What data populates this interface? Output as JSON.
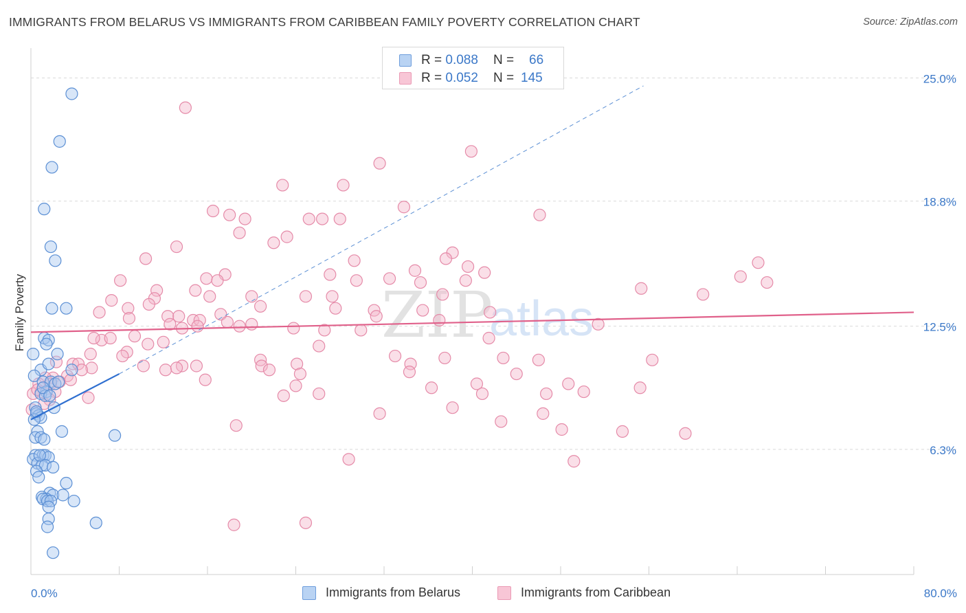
{
  "title": "IMMIGRANTS FROM BELARUS VS IMMIGRANTS FROM CARIBBEAN FAMILY POVERTY CORRELATION CHART",
  "source": "Source: ZipAtlas.com",
  "watermark": {
    "zip": "ZIP",
    "atlas": "atlas"
  },
  "legend": {
    "series1": {
      "r_label": "R =",
      "r_value": "0.088",
      "n_label": "N =",
      "n_value": "66"
    },
    "series2": {
      "r_label": "R =",
      "r_value": "0.052",
      "n_label": "N =",
      "n_value": "145"
    }
  },
  "colors": {
    "blue_fill": "#a9c8f0",
    "blue_stroke": "#5b8fd4",
    "blue_line": "#2f6fd0",
    "pink_fill": "#f5b8cb",
    "pink_stroke": "#e58aa8",
    "pink_line": "#e0608a",
    "tick_label": "#3b78c8"
  },
  "chart_data": {
    "type": "scatter",
    "title": "IMMIGRANTS FROM BELARUS VS IMMIGRANTS FROM CARIBBEAN FAMILY POVERTY CORRELATION CHART",
    "xlabel": "",
    "ylabel": "Family Poverty",
    "xlim": [
      0,
      80
    ],
    "ylim": [
      0,
      26.5
    ],
    "x_tick_labels": [
      "0.0%",
      "80.0%"
    ],
    "y_ticks": [
      6.3,
      12.5,
      18.8,
      25.0
    ],
    "y_tick_labels": [
      "6.3%",
      "12.5%",
      "18.8%",
      "25.0%"
    ],
    "grid": true,
    "legend_position": "top-center",
    "series": [
      {
        "name": "Immigrants from Belarus",
        "R": 0.088,
        "N": 66,
        "trend": {
          "x": [
            0,
            8
          ],
          "y": [
            7.8,
            10.1
          ]
        },
        "trend_extension": {
          "x": [
            8,
            55.5
          ],
          "y": [
            10.1,
            24.6
          ]
        },
        "points": [
          [
            3.7,
            24.2
          ],
          [
            2.6,
            21.8
          ],
          [
            1.9,
            20.5
          ],
          [
            1.2,
            18.4
          ],
          [
            1.8,
            16.5
          ],
          [
            2.2,
            15.8
          ],
          [
            3.2,
            13.4
          ],
          [
            1.9,
            13.4
          ],
          [
            1.2,
            11.9
          ],
          [
            1.6,
            11.8
          ],
          [
            1.4,
            11.6
          ],
          [
            2.4,
            11.1
          ],
          [
            0.2,
            11.1
          ],
          [
            0.9,
            10.3
          ],
          [
            1.6,
            10.6
          ],
          [
            3.7,
            10.3
          ],
          [
            0.3,
            10.0
          ],
          [
            1.1,
            9.7
          ],
          [
            1.8,
            9.7
          ],
          [
            2.2,
            9.6
          ],
          [
            1.4,
            9.2
          ],
          [
            0.9,
            9.1
          ],
          [
            1.3,
            9.0
          ],
          [
            0.4,
            8.4
          ],
          [
            2.1,
            8.4
          ],
          [
            0.5,
            8.1
          ],
          [
            0.7,
            8.0
          ],
          [
            0.9,
            7.9
          ],
          [
            0.3,
            7.8
          ],
          [
            2.8,
            7.2
          ],
          [
            0.6,
            7.2
          ],
          [
            7.6,
            7.0
          ],
          [
            0.4,
            6.9
          ],
          [
            0.9,
            6.9
          ],
          [
            1.2,
            6.8
          ],
          [
            0.4,
            6.0
          ],
          [
            1.1,
            6.0
          ],
          [
            1.3,
            6.0
          ],
          [
            1.6,
            5.9
          ],
          [
            0.2,
            5.8
          ],
          [
            0.6,
            5.6
          ],
          [
            1.0,
            5.5
          ],
          [
            1.3,
            5.5
          ],
          [
            2.0,
            5.4
          ],
          [
            0.5,
            5.2
          ],
          [
            0.7,
            4.9
          ],
          [
            3.2,
            4.6
          ],
          [
            1.7,
            4.1
          ],
          [
            2.0,
            4.0
          ],
          [
            2.9,
            4.0
          ],
          [
            1.0,
            3.9
          ],
          [
            1.4,
            3.8
          ],
          [
            1.1,
            3.8
          ],
          [
            1.5,
            3.7
          ],
          [
            1.8,
            3.7
          ],
          [
            3.9,
            3.7
          ],
          [
            1.6,
            3.4
          ],
          [
            1.6,
            2.8
          ],
          [
            5.9,
            2.6
          ],
          [
            1.5,
            2.4
          ],
          [
            2.0,
            1.1
          ],
          [
            0.5,
            8.2
          ],
          [
            1.1,
            9.4
          ],
          [
            0.8,
            6.0
          ],
          [
            1.7,
            9.0
          ],
          [
            2.5,
            9.7
          ]
        ]
      },
      {
        "name": "Immigrants from Caribbean",
        "R": 0.052,
        "N": 145,
        "trend": {
          "x": [
            0,
            80
          ],
          "y": [
            12.2,
            13.2
          ]
        },
        "points": [
          [
            14.0,
            23.5
          ],
          [
            39.9,
            21.3
          ],
          [
            31.6,
            20.7
          ],
          [
            22.8,
            19.6
          ],
          [
            28.3,
            19.6
          ],
          [
            33.8,
            18.5
          ],
          [
            16.5,
            18.3
          ],
          [
            18.0,
            18.1
          ],
          [
            46.1,
            18.1
          ],
          [
            19.4,
            17.9
          ],
          [
            25.2,
            17.9
          ],
          [
            26.4,
            17.9
          ],
          [
            28.0,
            17.9
          ],
          [
            18.9,
            17.2
          ],
          [
            23.2,
            17.0
          ],
          [
            22.0,
            16.7
          ],
          [
            13.2,
            16.5
          ],
          [
            38.2,
            16.2
          ],
          [
            37.6,
            15.9
          ],
          [
            10.4,
            15.9
          ],
          [
            29.3,
            15.8
          ],
          [
            65.9,
            15.7
          ],
          [
            39.6,
            15.5
          ],
          [
            34.8,
            15.3
          ],
          [
            41.1,
            15.2
          ],
          [
            17.6,
            15.1
          ],
          [
            27.1,
            15.1
          ],
          [
            15.9,
            14.9
          ],
          [
            16.9,
            14.8
          ],
          [
            32.5,
            14.9
          ],
          [
            29.5,
            14.8
          ],
          [
            39.4,
            14.8
          ],
          [
            8.1,
            14.8
          ],
          [
            64.3,
            15.0
          ],
          [
            35.3,
            14.7
          ],
          [
            66.7,
            14.7
          ],
          [
            55.3,
            14.4
          ],
          [
            14.9,
            14.3
          ],
          [
            11.4,
            14.3
          ],
          [
            60.9,
            14.1
          ],
          [
            37.3,
            14.1
          ],
          [
            20.0,
            14.0
          ],
          [
            16.2,
            14.0
          ],
          [
            24.9,
            14.0
          ],
          [
            27.3,
            14.0
          ],
          [
            11.2,
            13.9
          ],
          [
            7.3,
            13.8
          ],
          [
            10.7,
            13.6
          ],
          [
            20.8,
            13.5
          ],
          [
            8.8,
            13.4
          ],
          [
            27.6,
            13.4
          ],
          [
            31.1,
            13.3
          ],
          [
            6.2,
            13.2
          ],
          [
            35.5,
            13.3
          ],
          [
            41.6,
            13.2
          ],
          [
            12.4,
            13.0
          ],
          [
            13.4,
            13.0
          ],
          [
            17.2,
            13.1
          ],
          [
            31.3,
            13.0
          ],
          [
            8.9,
            12.9
          ],
          [
            14.7,
            12.8
          ],
          [
            15.3,
            12.8
          ],
          [
            17.8,
            12.7
          ],
          [
            37.0,
            12.8
          ],
          [
            12.6,
            12.6
          ],
          [
            15.1,
            12.5
          ],
          [
            20.0,
            12.6
          ],
          [
            51.4,
            12.6
          ],
          [
            18.9,
            12.5
          ],
          [
            23.8,
            12.4
          ],
          [
            13.7,
            12.4
          ],
          [
            26.6,
            12.3
          ],
          [
            29.9,
            12.3
          ],
          [
            9.4,
            12.0
          ],
          [
            6.4,
            11.8
          ],
          [
            5.7,
            11.9
          ],
          [
            7.2,
            11.9
          ],
          [
            41.5,
            11.9
          ],
          [
            12.0,
            11.7
          ],
          [
            10.6,
            11.6
          ],
          [
            26.1,
            11.5
          ],
          [
            8.7,
            11.2
          ],
          [
            5.4,
            11.1
          ],
          [
            8.3,
            11.0
          ],
          [
            33.0,
            11.0
          ],
          [
            37.5,
            10.9
          ],
          [
            42.8,
            10.9
          ],
          [
            46.0,
            10.8
          ],
          [
            20.8,
            10.8
          ],
          [
            56.3,
            10.8
          ],
          [
            2.3,
            10.7
          ],
          [
            3.8,
            10.6
          ],
          [
            4.3,
            10.6
          ],
          [
            10.2,
            10.5
          ],
          [
            13.7,
            10.5
          ],
          [
            15.0,
            10.5
          ],
          [
            20.9,
            10.5
          ],
          [
            34.4,
            10.6
          ],
          [
            24.1,
            10.6
          ],
          [
            5.5,
            10.4
          ],
          [
            12.2,
            10.3
          ],
          [
            21.6,
            10.3
          ],
          [
            4.6,
            10.3
          ],
          [
            13.2,
            10.4
          ],
          [
            34.3,
            10.2
          ],
          [
            44.0,
            10.1
          ],
          [
            3.3,
            10.0
          ],
          [
            2.0,
            9.9
          ],
          [
            2.6,
            9.7
          ],
          [
            15.8,
            9.8
          ],
          [
            24.4,
            10.1
          ],
          [
            1.3,
            9.9
          ],
          [
            3.6,
            9.8
          ],
          [
            40.4,
            9.6
          ],
          [
            48.7,
            9.6
          ],
          [
            24.0,
            9.5
          ],
          [
            1.8,
            9.6
          ],
          [
            0.7,
            9.6
          ],
          [
            36.3,
            9.4
          ],
          [
            55.2,
            9.4
          ],
          [
            2.2,
            9.2
          ],
          [
            0.2,
            9.1
          ],
          [
            26.1,
            9.1
          ],
          [
            40.9,
            9.1
          ],
          [
            46.7,
            9.1
          ],
          [
            50.1,
            9.2
          ],
          [
            22.9,
            9.0
          ],
          [
            0.9,
            9.2
          ],
          [
            5.2,
            8.9
          ],
          [
            1.7,
            8.8
          ],
          [
            1.2,
            8.6
          ],
          [
            38.2,
            8.4
          ],
          [
            0.1,
            8.3
          ],
          [
            31.6,
            8.1
          ],
          [
            46.4,
            8.1
          ],
          [
            42.6,
            7.7
          ],
          [
            18.6,
            7.5
          ],
          [
            48.1,
            7.3
          ],
          [
            53.6,
            7.2
          ],
          [
            59.3,
            7.1
          ],
          [
            28.8,
            5.8
          ],
          [
            49.2,
            5.7
          ],
          [
            18.4,
            2.5
          ],
          [
            24.9,
            2.6
          ],
          [
            0.6,
            9.3
          ]
        ]
      }
    ]
  },
  "bottom_legend": {
    "series1": "Immigrants from Belarus",
    "series2": "Immigrants from Caribbean"
  }
}
